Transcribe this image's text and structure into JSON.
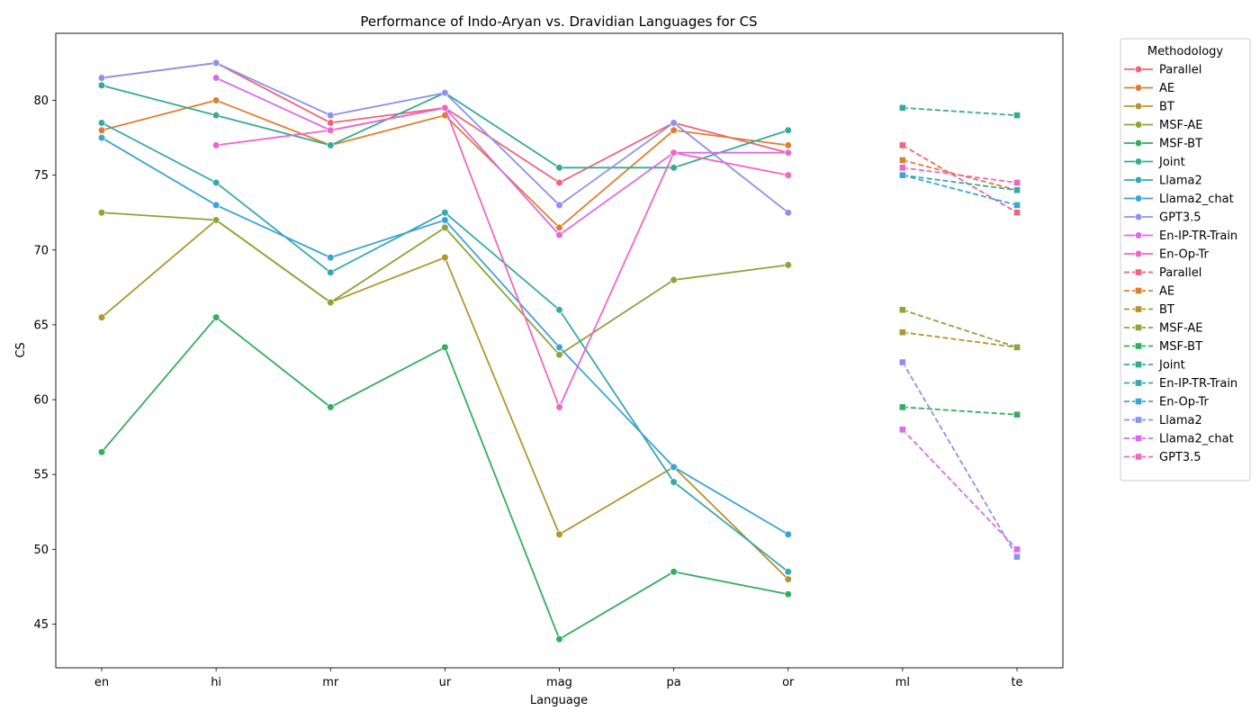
{
  "chart_data": {
    "type": "line",
    "title": "Performance of Indo-Aryan vs. Dravidian Languages for CS",
    "xlabel": "Language",
    "ylabel": "CS",
    "categories": [
      "en",
      "hi",
      "mr",
      "ur",
      "mag",
      "pa",
      "or",
      "ml",
      "te"
    ],
    "ylim": [
      42,
      84.2
    ],
    "yticks": [
      "45",
      "50",
      "55",
      "60",
      "65",
      "70",
      "75",
      "80"
    ],
    "grid": false,
    "legend": {
      "title": "Methodology",
      "placement": "outside-right"
    },
    "series": [
      {
        "name": "Parallel",
        "group": "Indo-Aryan",
        "style": "solid",
        "marker": "circle",
        "color": "#f0647a",
        "values": [
          81.5,
          82.5,
          78.5,
          79.5,
          74.5,
          78.5,
          76.5,
          null,
          null
        ]
      },
      {
        "name": "AE",
        "group": "Indo-Aryan",
        "style": "solid",
        "marker": "circle",
        "color": "#dd7f32",
        "values": [
          78,
          80,
          77,
          79,
          71.5,
          78,
          77,
          null,
          null
        ]
      },
      {
        "name": "BT",
        "group": "Indo-Aryan",
        "style": "solid",
        "marker": "circle",
        "color": "#b2952e",
        "values": [
          65.5,
          72,
          66.5,
          69.5,
          51,
          55.5,
          48,
          null,
          null
        ]
      },
      {
        "name": "MSF-AE",
        "group": "Indo-Aryan",
        "style": "solid",
        "marker": "circle",
        "color": "#8da53a",
        "values": [
          72.5,
          72,
          66.5,
          71.5,
          63,
          68,
          69,
          null,
          null
        ]
      },
      {
        "name": "MSF-BT",
        "group": "Indo-Aryan",
        "style": "solid",
        "marker": "circle",
        "color": "#35ad5e",
        "values": [
          56.5,
          65.5,
          59.5,
          63.5,
          44,
          48.5,
          47,
          null,
          null
        ]
      },
      {
        "name": "Joint",
        "group": "Indo-Aryan",
        "style": "solid",
        "marker": "circle",
        "color": "#36ab90",
        "values": [
          81,
          79,
          77,
          80.5,
          75.5,
          75.5,
          78,
          null,
          null
        ]
      },
      {
        "name": "Llama2",
        "group": "Indo-Aryan",
        "style": "solid",
        "marker": "circle",
        "color": "#37a8ae",
        "values": [
          78.5,
          74.5,
          68.5,
          72.5,
          66,
          54.5,
          48.5,
          null,
          null
        ]
      },
      {
        "name": "Llama2_chat",
        "group": "Indo-Aryan",
        "style": "solid",
        "marker": "circle",
        "color": "#3ba3d6",
        "values": [
          77.5,
          73,
          69.5,
          72,
          63.5,
          55.5,
          51,
          null,
          null
        ]
      },
      {
        "name": "GPT3.5",
        "group": "Indo-Aryan",
        "style": "solid",
        "marker": "circle",
        "color": "#8d92ec",
        "values": [
          81.5,
          82.5,
          79,
          80.5,
          73,
          78.5,
          72.5,
          null,
          null
        ]
      },
      {
        "name": "En-IP-TR-Train",
        "group": "Indo-Aryan",
        "style": "solid",
        "marker": "circle",
        "color": "#db6ae8",
        "values": [
          null,
          81.5,
          78,
          79.5,
          71,
          76.5,
          76.5,
          null,
          null
        ]
      },
      {
        "name": "En-Op-Tr",
        "group": "Indo-Aryan",
        "style": "solid",
        "marker": "circle",
        "color": "#f066c7",
        "values": [
          null,
          77,
          78,
          79.5,
          59.5,
          76.5,
          75,
          null,
          null
        ]
      },
      {
        "name": "Parallel",
        "group": "Dravidian",
        "style": "dashed",
        "marker": "square",
        "color": "#f0647a",
        "values": [
          null,
          null,
          null,
          null,
          null,
          null,
          null,
          77,
          72.5
        ]
      },
      {
        "name": "AE",
        "group": "Dravidian",
        "style": "dashed",
        "marker": "square",
        "color": "#dd7f32",
        "values": [
          null,
          null,
          null,
          null,
          null,
          null,
          null,
          76,
          74
        ]
      },
      {
        "name": "BT",
        "group": "Dravidian",
        "style": "dashed",
        "marker": "square",
        "color": "#b2952e",
        "values": [
          null,
          null,
          null,
          null,
          null,
          null,
          null,
          64.5,
          63.5
        ]
      },
      {
        "name": "MSF-AE",
        "group": "Dravidian",
        "style": "dashed",
        "marker": "square",
        "color": "#8da53a",
        "values": [
          null,
          null,
          null,
          null,
          null,
          null,
          null,
          66,
          63.5
        ]
      },
      {
        "name": "MSF-BT",
        "group": "Dravidian",
        "style": "dashed",
        "marker": "square",
        "color": "#35ad5e",
        "values": [
          null,
          null,
          null,
          null,
          null,
          null,
          null,
          59.5,
          59
        ]
      },
      {
        "name": "Joint",
        "group": "Dravidian",
        "style": "dashed",
        "marker": "square",
        "color": "#36ab90",
        "values": [
          null,
          null,
          null,
          null,
          null,
          null,
          null,
          79.5,
          79
        ]
      },
      {
        "name": "En-IP-TR-Train",
        "group": "Dravidian",
        "style": "dashed",
        "marker": "square",
        "color": "#37a8ae",
        "values": [
          null,
          null,
          null,
          null,
          null,
          null,
          null,
          75,
          74
        ]
      },
      {
        "name": "En-Op-Tr",
        "group": "Dravidian",
        "style": "dashed",
        "marker": "square",
        "color": "#3ba3d6",
        "values": [
          null,
          null,
          null,
          null,
          null,
          null,
          null,
          75,
          73
        ]
      },
      {
        "name": "Llama2",
        "group": "Dravidian",
        "style": "dashed",
        "marker": "square",
        "color": "#8d92ec",
        "values": [
          null,
          null,
          null,
          null,
          null,
          null,
          null,
          62.5,
          49.5
        ]
      },
      {
        "name": "Llama2_chat",
        "group": "Dravidian",
        "style": "dashed",
        "marker": "square",
        "color": "#db6ae8",
        "values": [
          null,
          null,
          null,
          null,
          null,
          null,
          null,
          58,
          50
        ]
      },
      {
        "name": "GPT3.5",
        "group": "Dravidian",
        "style": "dashed",
        "marker": "square",
        "color": "#f066c7",
        "values": [
          null,
          null,
          null,
          null,
          null,
          null,
          null,
          75.5,
          74.5
        ]
      }
    ]
  }
}
